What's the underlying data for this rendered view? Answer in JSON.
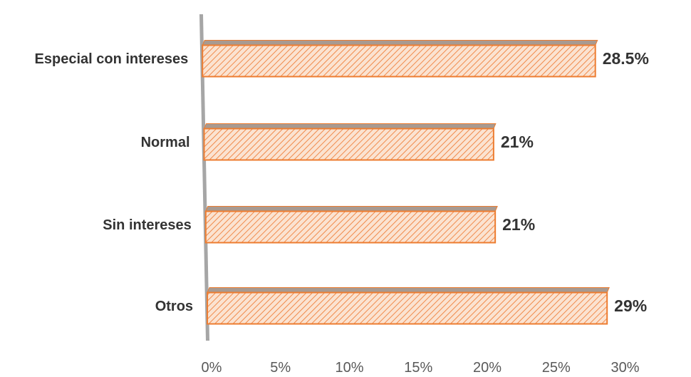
{
  "chart_data": {
    "type": "bar",
    "orientation": "horizontal",
    "style": "3d-hatched",
    "categories": [
      "Especial con intereses",
      "Normal",
      "Sin intereses",
      "Otros"
    ],
    "values": [
      28.5,
      21,
      21,
      29
    ],
    "data_labels": [
      "28.5%",
      "21%",
      "21%",
      "29%"
    ],
    "x_ticks": [
      "0%",
      "5%",
      "10%",
      "15%",
      "20%",
      "25%",
      "30%"
    ],
    "xlim": [
      0,
      30
    ],
    "grid": false,
    "legend": "none",
    "colors": {
      "bar_fill": "#fbe3d1",
      "bar_hatch": "#f08a4b",
      "bar_outline": "#ed7d31",
      "bar_top": "#a89a91",
      "axis_wall": "#a6a6a6"
    }
  }
}
